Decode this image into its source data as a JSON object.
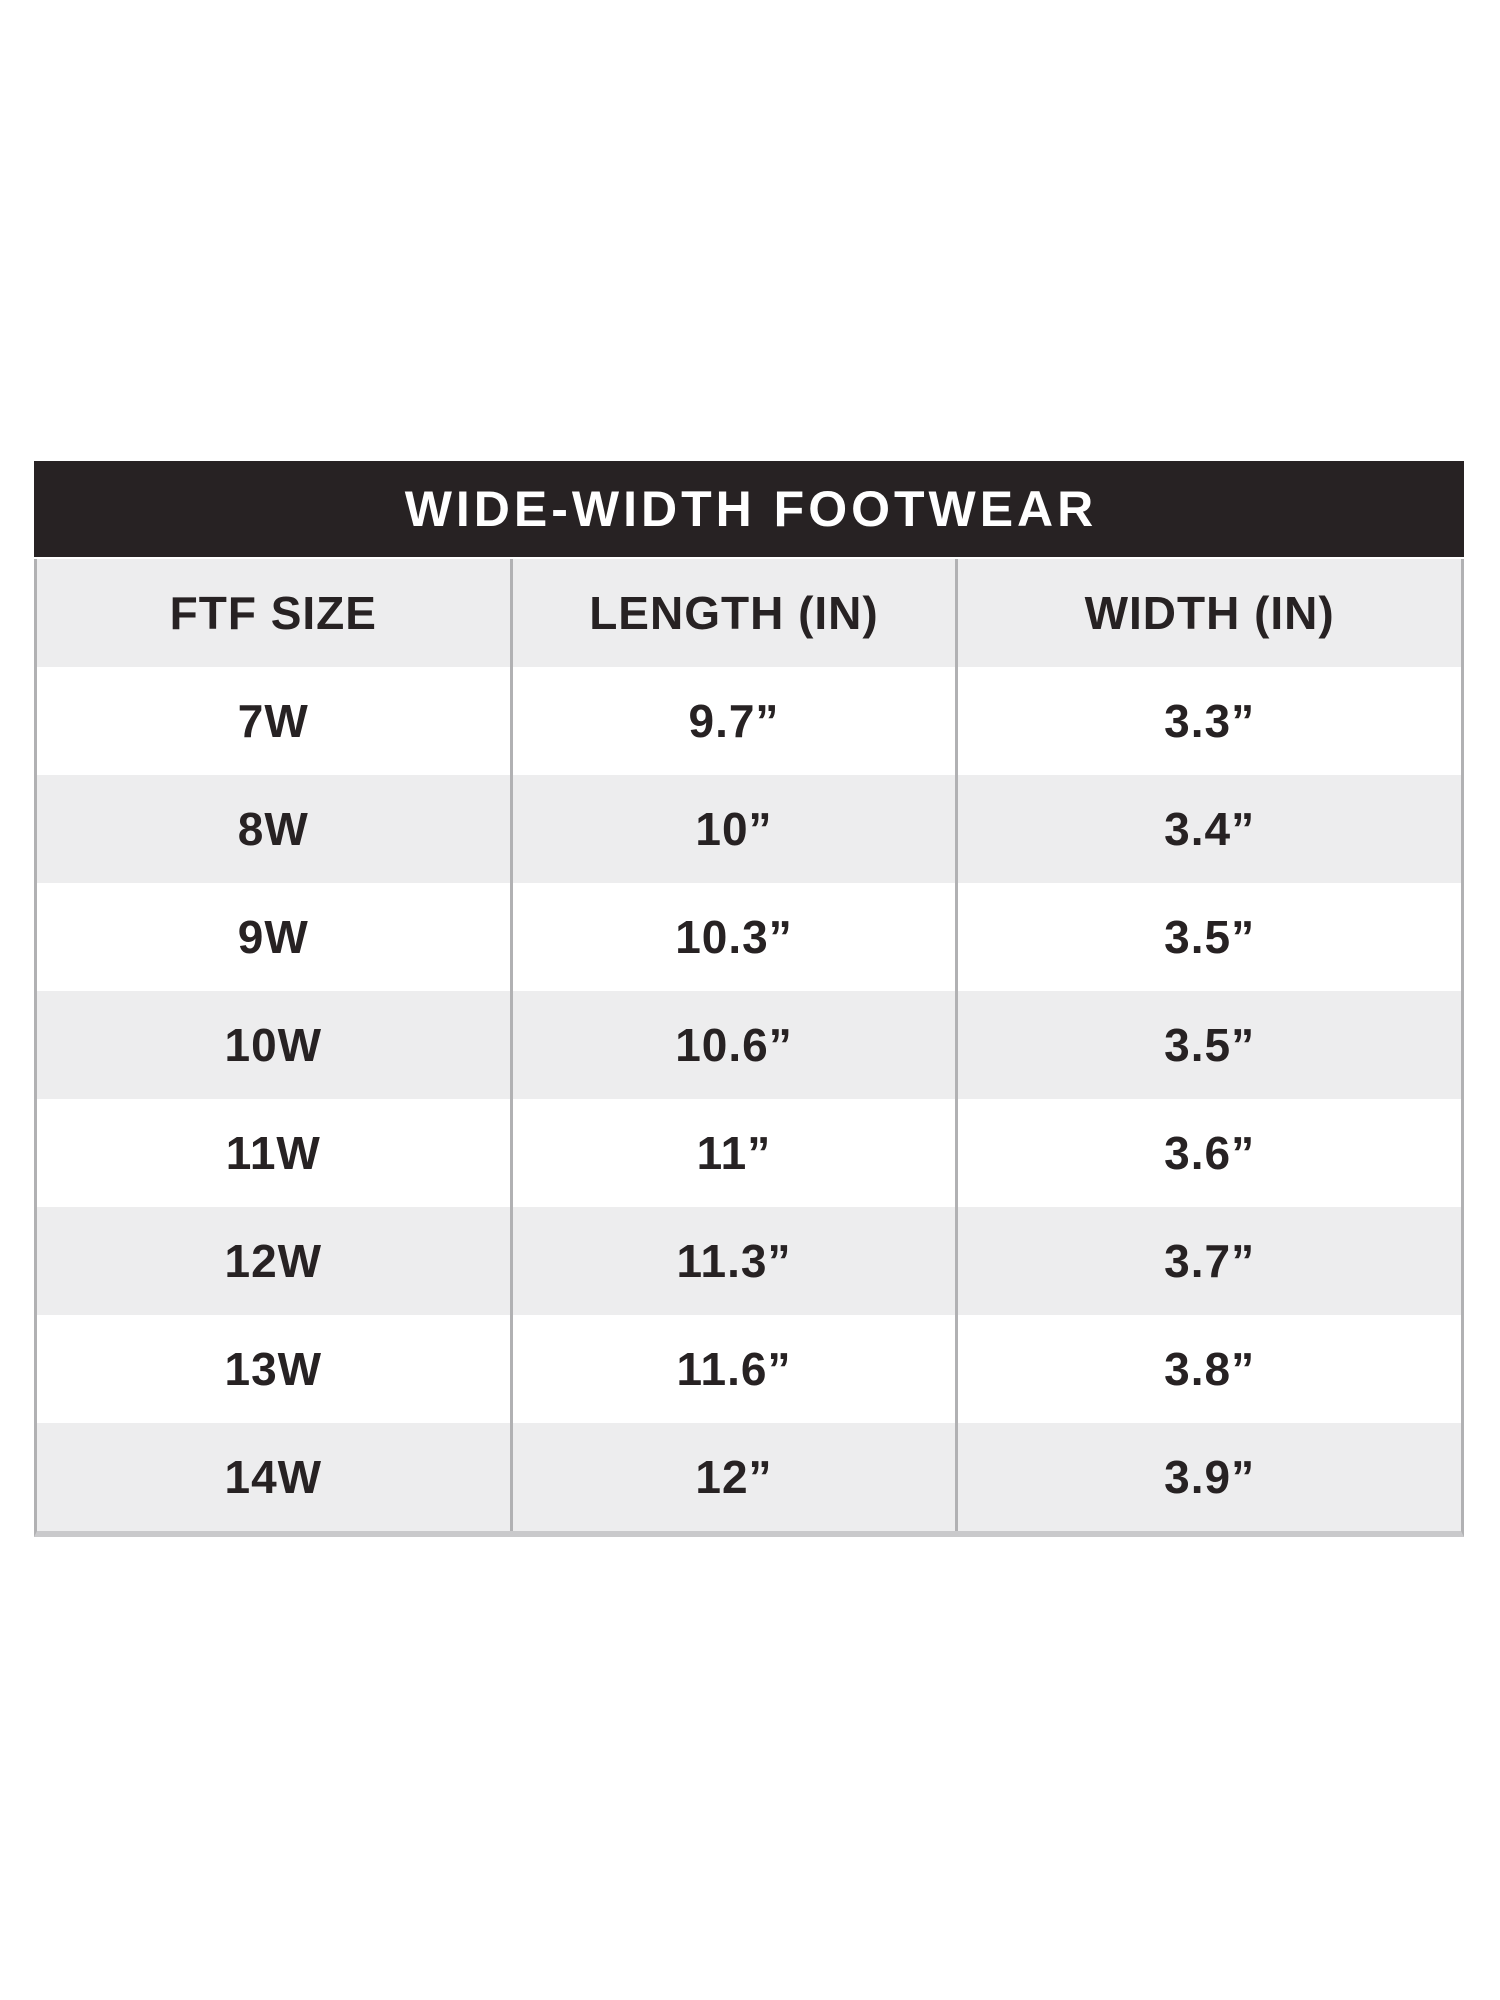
{
  "table": {
    "title": "WIDE-WIDTH FOOTWEAR",
    "columns": [
      "FTF SIZE",
      "LENGTH (IN)",
      "WIDTH (IN)"
    ],
    "rows": [
      [
        "7W",
        "9.7”",
        "3.3”"
      ],
      [
        "8W",
        "10”",
        "3.4”"
      ],
      [
        "9W",
        "10.3”",
        "3.5”"
      ],
      [
        "10W",
        "10.6”",
        "3.5”"
      ],
      [
        "11W",
        "11”",
        "3.6”"
      ],
      [
        "12W",
        "11.3”",
        "3.7”"
      ],
      [
        "13W",
        "11.6”",
        "3.8”"
      ],
      [
        "14W",
        "12”",
        "3.9”"
      ]
    ],
    "colors": {
      "title_bar_bg": "#272223",
      "title_text": "#ffffff",
      "row_bg": "#ffffff",
      "row_alt_bg": "#ededee",
      "cell_text": "#272223",
      "divider": "#b1b1b3",
      "bottom_edge": "#c9c9cb"
    }
  }
}
